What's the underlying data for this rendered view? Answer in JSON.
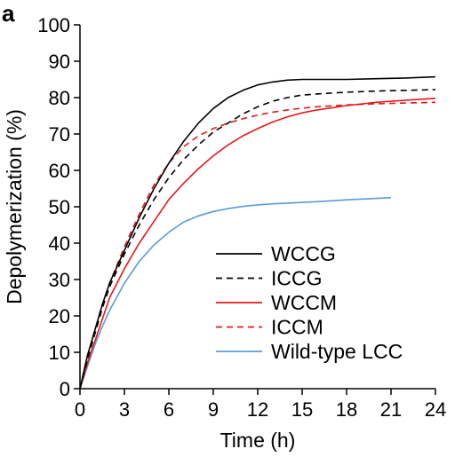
{
  "panel_label": "a",
  "chart_data": {
    "type": "line",
    "title": "",
    "xlabel": "Time (h)",
    "ylabel": "Depolymerization (%)",
    "xlim": [
      0,
      24
    ],
    "ylim": [
      0,
      100
    ],
    "xticks": [
      0,
      3,
      6,
      9,
      12,
      15,
      18,
      21,
      24
    ],
    "yticks": [
      0,
      10,
      20,
      30,
      40,
      50,
      60,
      70,
      80,
      90,
      100
    ],
    "grid": false,
    "legend_position": "bottom-right",
    "series": [
      {
        "name": "WCCG",
        "color": "#000000",
        "dash": "solid",
        "x": [
          0,
          0.5,
          1,
          1.5,
          2,
          3,
          4,
          5,
          6,
          7,
          8,
          9,
          10,
          11,
          12,
          13,
          14,
          15,
          16,
          18,
          20,
          22,
          24
        ],
        "y": [
          0,
          9,
          16,
          23,
          29,
          38,
          47,
          55,
          62,
          68,
          73,
          77,
          80,
          82,
          83.5,
          84.3,
          84.8,
          85,
          85,
          85,
          85.2,
          85.4,
          85.7
        ]
      },
      {
        "name": "ICCG",
        "color": "#000000",
        "dash": "dashed",
        "x": [
          0,
          0.5,
          1,
          1.5,
          2,
          3,
          4,
          5,
          6,
          7,
          8,
          9,
          10,
          11,
          12,
          13,
          14,
          15,
          16,
          18,
          20,
          22,
          24
        ],
        "y": [
          0,
          8,
          15,
          22,
          28,
          37,
          45,
          52,
          58,
          63,
          67,
          70.5,
          73,
          75.5,
          77.5,
          79,
          80,
          80.7,
          81,
          81.5,
          81.8,
          82,
          82.2
        ]
      },
      {
        "name": "WCCM",
        "color": "#e41a1c",
        "dash": "solid",
        "x": [
          0,
          0.5,
          1,
          1.5,
          2,
          3,
          4,
          5,
          6,
          7,
          8,
          9,
          10,
          11,
          12,
          13,
          14,
          15,
          16,
          18,
          20,
          22,
          24
        ],
        "y": [
          0,
          7,
          13,
          19,
          25,
          33,
          40,
          46,
          52,
          56.5,
          60.5,
          64,
          67,
          69.5,
          71.5,
          73.3,
          74.7,
          75.8,
          76.6,
          77.8,
          78.7,
          79.3,
          79.8
        ]
      },
      {
        "name": "ICCM",
        "color": "#e41a1c",
        "dash": "dashed",
        "x": [
          0,
          0.5,
          1,
          1.5,
          2,
          3,
          4,
          5,
          6,
          7,
          8,
          9,
          10,
          11,
          12,
          13,
          14,
          15,
          16,
          18,
          20,
          22,
          24
        ],
        "y": [
          0,
          9,
          16,
          23,
          29,
          39,
          48,
          56,
          62,
          66.5,
          69.5,
          71.5,
          73,
          74.2,
          75.2,
          76,
          76.6,
          77.1,
          77.5,
          78,
          78.3,
          78.5,
          78.7
        ]
      },
      {
        "name": "Wild-type LCC",
        "color": "#5b9bd5",
        "dash": "solid",
        "x": [
          0,
          0.5,
          1,
          1.5,
          2,
          3,
          4,
          5,
          6,
          7,
          8,
          9,
          10,
          11,
          12,
          13,
          14,
          15,
          16,
          18,
          20,
          21
        ],
        "y": [
          0,
          6,
          12,
          17,
          21.5,
          29,
          35,
          39.5,
          43,
          45.8,
          47.5,
          48.7,
          49.5,
          50.1,
          50.5,
          50.8,
          51,
          51.2,
          51.4,
          51.9,
          52.3,
          52.5
        ]
      }
    ]
  }
}
